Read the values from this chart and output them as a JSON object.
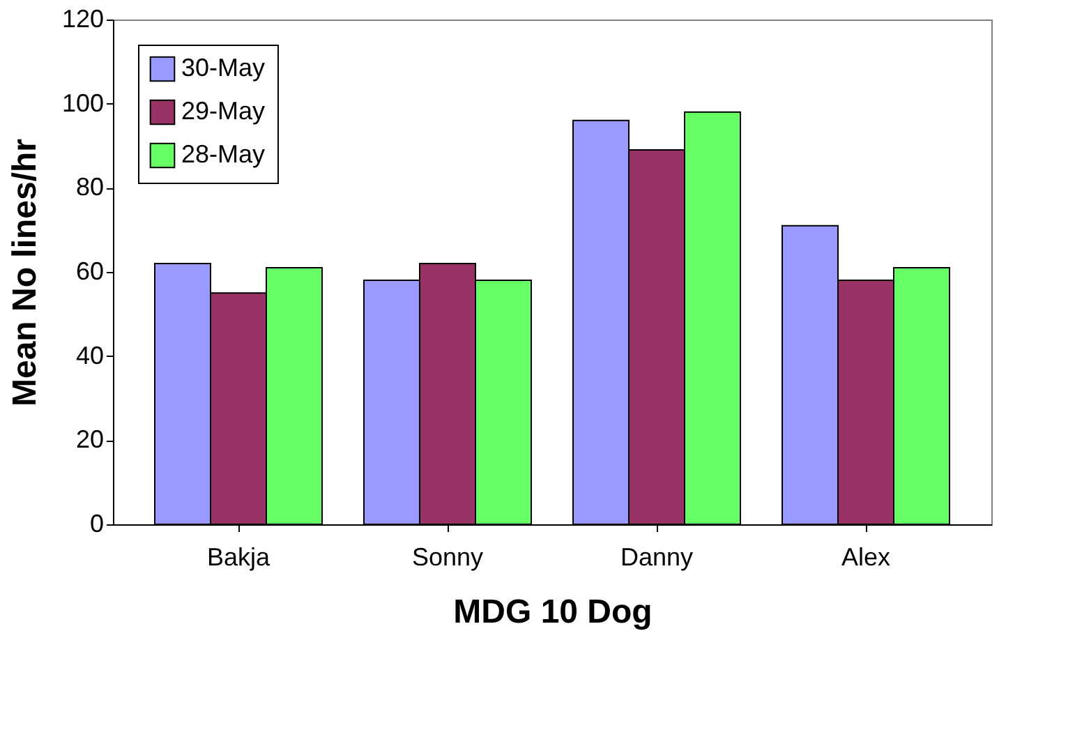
{
  "chart_data": {
    "type": "bar",
    "xlabel": "MDG 10 Dog",
    "ylabel": "Mean No lines/hr",
    "categories": [
      "Bakja",
      "Sonny",
      "Danny",
      "Alex"
    ],
    "series": [
      {
        "name": "30-May",
        "color": "#9999ff",
        "values": [
          62,
          58,
          96,
          71
        ]
      },
      {
        "name": "29-May",
        "color": "#993366",
        "values": [
          55,
          62,
          89,
          58
        ]
      },
      {
        "name": "28-May",
        "color": "#66ff66",
        "values": [
          61,
          58,
          98,
          61
        ]
      }
    ],
    "ylim": [
      0,
      120
    ],
    "yticks": [
      0,
      20,
      40,
      60,
      80,
      100,
      120
    ],
    "grid": false,
    "legend": "top left"
  }
}
